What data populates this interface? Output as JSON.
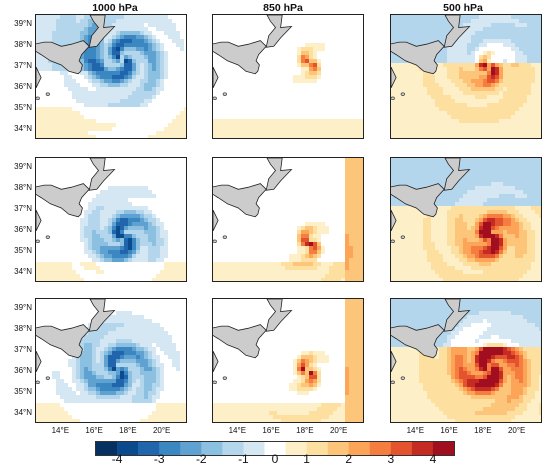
{
  "column_titles": [
    "1000 hPa",
    "850 hPa",
    "500 hPa"
  ],
  "lat_labels": [
    "39°N",
    "38°N",
    "37°N",
    "36°N",
    "35°N",
    "34°N"
  ],
  "lon_labels": [
    "14°E",
    "16°E",
    "18°E",
    "20°E"
  ],
  "colorbar": {
    "tick_labels": [
      "-4",
      "-3",
      "-2",
      "-1",
      "0",
      "1",
      "2",
      "3",
      "4"
    ],
    "levels": [
      -4.5,
      -4,
      -3.5,
      -3,
      -2.5,
      -2,
      -1.5,
      -1,
      -0.5,
      0.5,
      1,
      1.5,
      2,
      2.5,
      3,
      3.5,
      4,
      4.5
    ],
    "colors": [
      "#053061",
      "#0b4a8c",
      "#2166ac",
      "#3a87c2",
      "#5fa2d2",
      "#8cc0e1",
      "#b3d6ec",
      "#d4e7f3",
      "#ffffff",
      "#fdf0c8",
      "#fde0a0",
      "#fdc57a",
      "#fca457",
      "#f47d3f",
      "#e3542e",
      "#c42b23",
      "#a10e1f"
    ]
  },
  "map": {
    "lat_range": [
      33.5,
      39.5
    ],
    "lon_range": [
      12.5,
      21.5
    ],
    "land_color": "#cccccc"
  },
  "panels": [
    {
      "row": 0,
      "col": 0,
      "center": [
        17.6,
        37.4
      ],
      "radius": 1.8,
      "intensity": -2.6,
      "background": "cool_north"
    },
    {
      "row": 0,
      "col": 1,
      "center": [
        18.2,
        37.2
      ],
      "radius": 0.5,
      "intensity": 3.0,
      "background": "neutral"
    },
    {
      "row": 0,
      "col": 2,
      "center": [
        18.3,
        37.0
      ],
      "radius": 0.7,
      "intensity": 2.8,
      "background": "cool_warm"
    },
    {
      "row": 1,
      "col": 0,
      "center": [
        17.7,
        35.7
      ],
      "radius": 1.2,
      "intensity": -2.8,
      "background": "neutral"
    },
    {
      "row": 1,
      "col": 1,
      "center": [
        18.2,
        35.4
      ],
      "radius": 0.6,
      "intensity": 3.4,
      "background": "warm_east"
    },
    {
      "row": 1,
      "col": 2,
      "center": [
        18.4,
        35.7
      ],
      "radius": 0.9,
      "intensity": 3.5,
      "background": "cool_warm"
    },
    {
      "row": 2,
      "col": 0,
      "center": [
        17.3,
        36.1
      ],
      "radius": 1.6,
      "intensity": -2.4,
      "background": "neutral"
    },
    {
      "row": 2,
      "col": 1,
      "center": [
        18.1,
        36.0
      ],
      "radius": 0.6,
      "intensity": 3.6,
      "background": "warm_east"
    },
    {
      "row": 2,
      "col": 2,
      "center": [
        18.3,
        36.2
      ],
      "radius": 1.3,
      "intensity": 3.8,
      "background": "cool_warm"
    }
  ]
}
